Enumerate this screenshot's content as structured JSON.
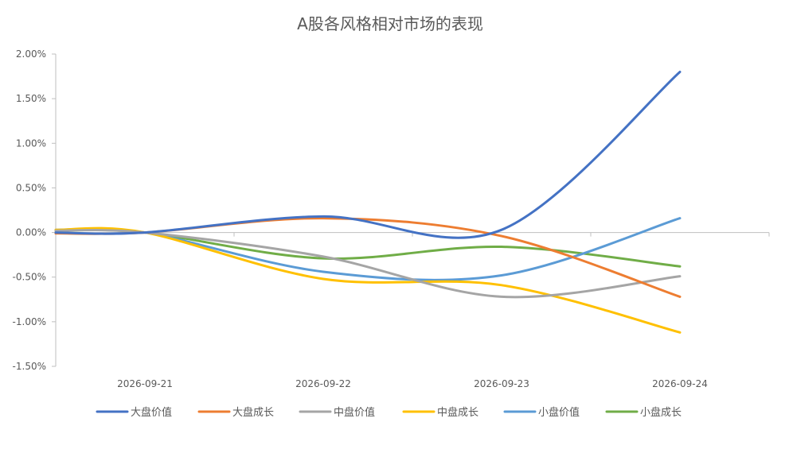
{
  "chart_data": {
    "type": "line",
    "title": "A股各风格相对市场的表现",
    "xlabel": "",
    "ylabel": "",
    "categories": [
      "",
      "2026-09-21",
      "2026-09-22",
      "2026-09-23",
      "2026-09-24"
    ],
    "series": [
      {
        "name": "大盘价值",
        "color": "#4472C4",
        "values": [
          0.0,
          0.0,
          0.0018,
          0.0003,
          0.018
        ]
      },
      {
        "name": "大盘成长",
        "color": "#ED7D31",
        "values": [
          -0.0001,
          0.0,
          0.0016,
          -0.0004,
          -0.0072
        ]
      },
      {
        "name": "中盘价值",
        "color": "#A5A5A5",
        "values": [
          0.0002,
          0.0,
          -0.0027,
          -0.0072,
          -0.0049
        ]
      },
      {
        "name": "中盘成长",
        "color": "#FFC000",
        "values": [
          0.0003,
          0.0,
          -0.0052,
          -0.0059,
          -0.0112
        ]
      },
      {
        "name": "小盘价值",
        "color": "#5B9BD5",
        "values": [
          0.0003,
          0.0,
          -0.0044,
          -0.0048,
          0.0016
        ]
      },
      {
        "name": "小盘成长",
        "color": "#70AD47",
        "values": [
          0.0002,
          0.0,
          -0.0029,
          -0.0016,
          -0.0038
        ]
      }
    ],
    "yaxis": {
      "ylim": [
        -0.015,
        0.02
      ],
      "ticks": [
        0.02,
        0.015,
        0.01,
        0.005,
        0.0,
        -0.005,
        -0.01,
        -0.015
      ],
      "tick_labels": [
        "2.00%",
        "1.50%",
        "1.00%",
        "0.50%",
        "0.00%",
        "-0.50%",
        "-1.00%",
        "-1.50%"
      ]
    },
    "xaxis": {
      "tick_labels": [
        "2026-09-21",
        "2026-09-22",
        "2026-09-23",
        "2026-09-24"
      ]
    },
    "legend": {
      "position": "bottom"
    },
    "grid": false
  }
}
